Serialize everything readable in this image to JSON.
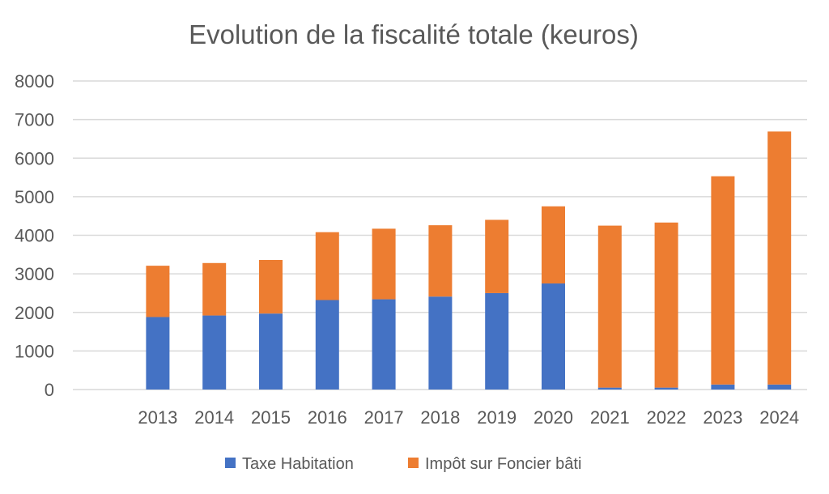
{
  "chart_data": {
    "type": "bar",
    "stacked": true,
    "title": "Evolution de la fiscalité totale (keuros)",
    "xlabel": "",
    "ylabel": "",
    "categories": [
      "2013",
      "2014",
      "2015",
      "2016",
      "2017",
      "2018",
      "2019",
      "2020",
      "2021",
      "2022",
      "2023",
      "2024"
    ],
    "series": [
      {
        "name": "Taxe Habitation",
        "color": "#4472c4",
        "values": [
          1880,
          1920,
          1970,
          2320,
          2340,
          2410,
          2500,
          2750,
          50,
          50,
          130,
          130
        ]
      },
      {
        "name": "Impôt sur Foncier bâti",
        "color": "#ed7d31",
        "values": [
          1330,
          1360,
          1390,
          1760,
          1830,
          1850,
          1900,
          2000,
          4200,
          4280,
          5400,
          6560
        ]
      }
    ],
    "ylim": [
      0,
      8000
    ],
    "yticks": [
      "0",
      "1000",
      "2000",
      "3000",
      "4000",
      "5000",
      "6000",
      "7000",
      "8000"
    ],
    "grid": true,
    "legend_position": "bottom"
  }
}
